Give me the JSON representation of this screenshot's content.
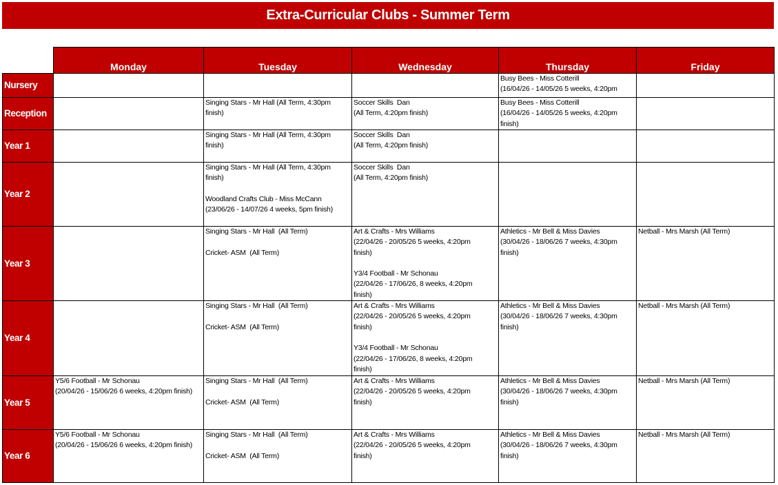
{
  "title": "Extra-Curricular Clubs - Summer Term",
  "days": [
    "Monday",
    "Tuesday",
    "Wednesday",
    "Thursday",
    "Friday"
  ],
  "rows": [
    {
      "label": "Nursery",
      "cells": [
        "",
        "",
        "",
        "Busy Bees - Miss Cotterill\n(16/04/26 - 14/05/26 5 weeks, 4:20pm",
        ""
      ]
    },
    {
      "label": "Reception",
      "cells": [
        "",
        "Singing Stars - Mr Hall (All Term, 4:30pm\nfinish)",
        "Soccer Skills  Dan\n(All Term, 4:20pm finish)",
        "Busy Bees - Miss Cotterill\n(16/04/26 - 14/05/26 5 weeks, 4:20pm\nfinish)",
        ""
      ]
    },
    {
      "label": "Year 1",
      "cells": [
        "",
        "Singing Stars - Mr Hall (All Term, 4:30pm\nfinish)",
        "Soccer Skills  Dan\n(All Term, 4:20pm finish)",
        "",
        ""
      ]
    },
    {
      "label": "Year 2",
      "cells": [
        "",
        "Singing Stars - Mr Hall (All Term, 4:30pm\nfinish)\n\nWoodland Crafts Club - Miss McCann\n(23/06/26 - 14/07/26 4 weeks, 5pm finish)",
        "Soccer Skills  Dan\n(All Term, 4:20pm finish)",
        "",
        ""
      ]
    },
    {
      "label": "Year 3",
      "cells": [
        "",
        "Singing Stars - Mr Hall  (All Term)\n\nCricket- ASM  (All Term)",
        "Art & Crafts - Mrs Williams\n(22/04/26 - 20/05/26 5 weeks, 4:20pm\nfinish)\n\nY3/4 Football - Mr Schonau\n(22/04/26 - 17/06/26, 8 weeks, 4:20pm\nfinish)",
        "Athletics - Mr Bell & Miss Davies\n(30/04/26 - 18/06/26 7 weeks, 4:30pm\nfinish)",
        "Netball - Mrs Marsh (All Term)"
      ]
    },
    {
      "label": "Year 4",
      "cells": [
        "",
        "Singing Stars - Mr Hall  (All Term)\n\nCricket- ASM  (All Term)",
        "Art & Crafts - Mrs Williams\n(22/04/26 - 20/05/26 5 weeks, 4:20pm\nfinish)\n\nY3/4 Football - Mr Schonau\n(22/04/26 - 17/06/26, 8 weeks, 4:20pm\nfinish)",
        "Athletics - Mr Bell & Miss Davies\n(30/04/26 - 18/06/26 7 weeks, 4:30pm\nfinish)",
        "Netball - Mrs Marsh (All Term)"
      ]
    },
    {
      "label": "Year 5",
      "cells": [
        "Y5/6 Football - Mr Schonau\n(20/04/26 - 15/06/26 6 weeks, 4:20pm finish)",
        "Singing Stars - Mr Hall  (All Term)\n\nCricket- ASM  (All Term)",
        "Art & Crafts - Mrs Williams\n(22/04/26 - 20/05/26 5 weeks, 4:20pm\nfinish)",
        "Athletics - Mr Bell & Miss Davies\n(30/04/26 - 18/06/26 7 weeks, 4:30pm\nfinish)",
        "Netball - Mrs Marsh (All Term)"
      ]
    },
    {
      "label": "Year 6",
      "cells": [
        "Y5/6 Football - Mr Schonau\n(20/04/26 - 15/06/26 6 weeks, 4:20pm finish)",
        "Singing Stars - Mr Hall  (All Term)\n\nCricket- ASM  (All Term)",
        "Art & Crafts - Mrs Williams\n(22/04/26 - 20/05/26 5 weeks, 4:20pm\nfinish)",
        "Athletics - Mr Bell & Miss Davies\n(30/04/26 - 18/06/26 7 weeks, 4:30pm\nfinish)",
        "Netball - Mrs Marsh (All Term)"
      ]
    }
  ],
  "colors": {
    "header": "#c00000",
    "header_text": "#ffffff"
  }
}
